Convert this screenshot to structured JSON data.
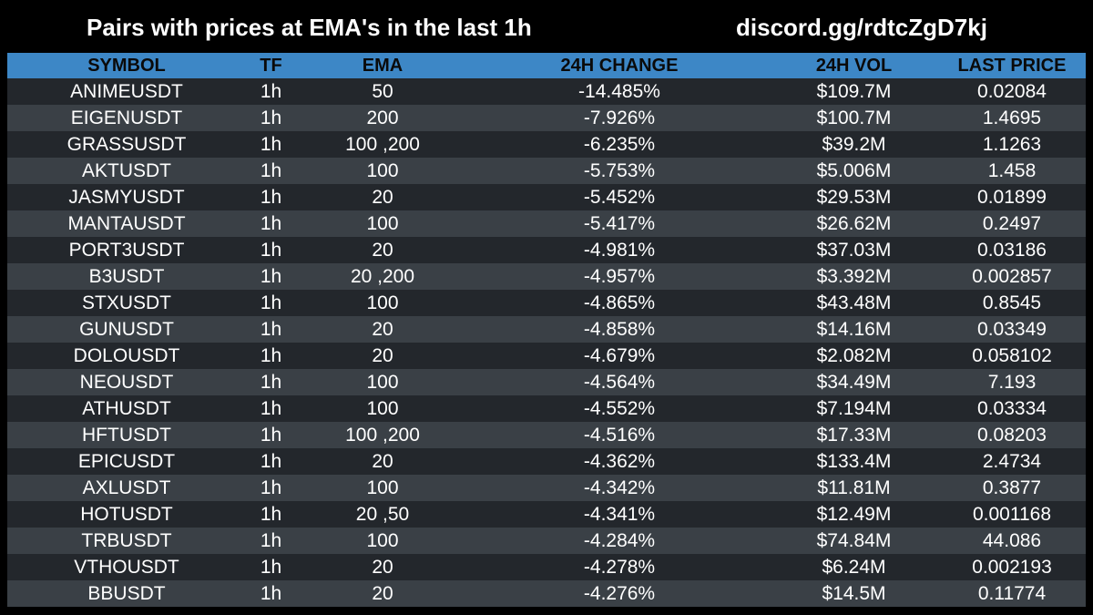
{
  "header": {
    "title": "Pairs with prices at EMA's in the last 1h",
    "discord": "discord.gg/rdtcZgD7kj"
  },
  "table": {
    "columns": [
      "SYMBOL",
      "TF",
      "EMA",
      "24H CHANGE",
      "24H VOL",
      "LAST PRICE"
    ],
    "rows": [
      [
        "ANIMEUSDT",
        "1h",
        "50",
        "-14.485%",
        "$109.7M",
        "0.02084"
      ],
      [
        "EIGENUSDT",
        "1h",
        "200",
        "-7.926%",
        "$100.7M",
        "1.4695"
      ],
      [
        "GRASSUSDT",
        "1h",
        "100 ,200",
        "-6.235%",
        "$39.2M",
        "1.1263"
      ],
      [
        "AKTUSDT",
        "1h",
        "100",
        "-5.753%",
        "$5.006M",
        "1.458"
      ],
      [
        "JASMYUSDT",
        "1h",
        "20",
        "-5.452%",
        "$29.53M",
        "0.01899"
      ],
      [
        "MANTAUSDT",
        "1h",
        "100",
        "-5.417%",
        "$26.62M",
        "0.2497"
      ],
      [
        "PORT3USDT",
        "1h",
        "20",
        "-4.981%",
        "$37.03M",
        "0.03186"
      ],
      [
        "B3USDT",
        "1h",
        "20 ,200",
        "-4.957%",
        "$3.392M",
        "0.002857"
      ],
      [
        "STXUSDT",
        "1h",
        "100",
        "-4.865%",
        "$43.48M",
        "0.8545"
      ],
      [
        "GUNUSDT",
        "1h",
        "20",
        "-4.858%",
        "$14.16M",
        "0.03349"
      ],
      [
        "DOLOUSDT",
        "1h",
        "20",
        "-4.679%",
        "$2.082M",
        "0.058102"
      ],
      [
        "NEOUSDT",
        "1h",
        "100",
        "-4.564%",
        "$34.49M",
        "7.193"
      ],
      [
        "ATHUSDT",
        "1h",
        "100",
        "-4.552%",
        "$7.194M",
        "0.03334"
      ],
      [
        "HFTUSDT",
        "1h",
        "100 ,200",
        "-4.516%",
        "$17.33M",
        "0.08203"
      ],
      [
        "EPICUSDT",
        "1h",
        "20",
        "-4.362%",
        "$133.4M",
        "2.4734"
      ],
      [
        "AXLUSDT",
        "1h",
        "100",
        "-4.342%",
        "$11.81M",
        "0.3877"
      ],
      [
        "HOTUSDT",
        "1h",
        "20 ,50",
        "-4.341%",
        "$12.49M",
        "0.001168"
      ],
      [
        "TRBUSDT",
        "1h",
        "100",
        "-4.284%",
        "$74.84M",
        "44.086"
      ],
      [
        "VTHOUSDT",
        "1h",
        "20",
        "-4.278%",
        "$6.24M",
        "0.002193"
      ],
      [
        "BBUSDT",
        "1h",
        "20",
        "-4.276%",
        "$14.5M",
        "0.11774"
      ]
    ]
  },
  "colors": {
    "background": "#000000",
    "header_bg": "#3d87c6",
    "row_dark": "#23272c",
    "row_light": "#3a4046",
    "text": "#ffffff"
  }
}
